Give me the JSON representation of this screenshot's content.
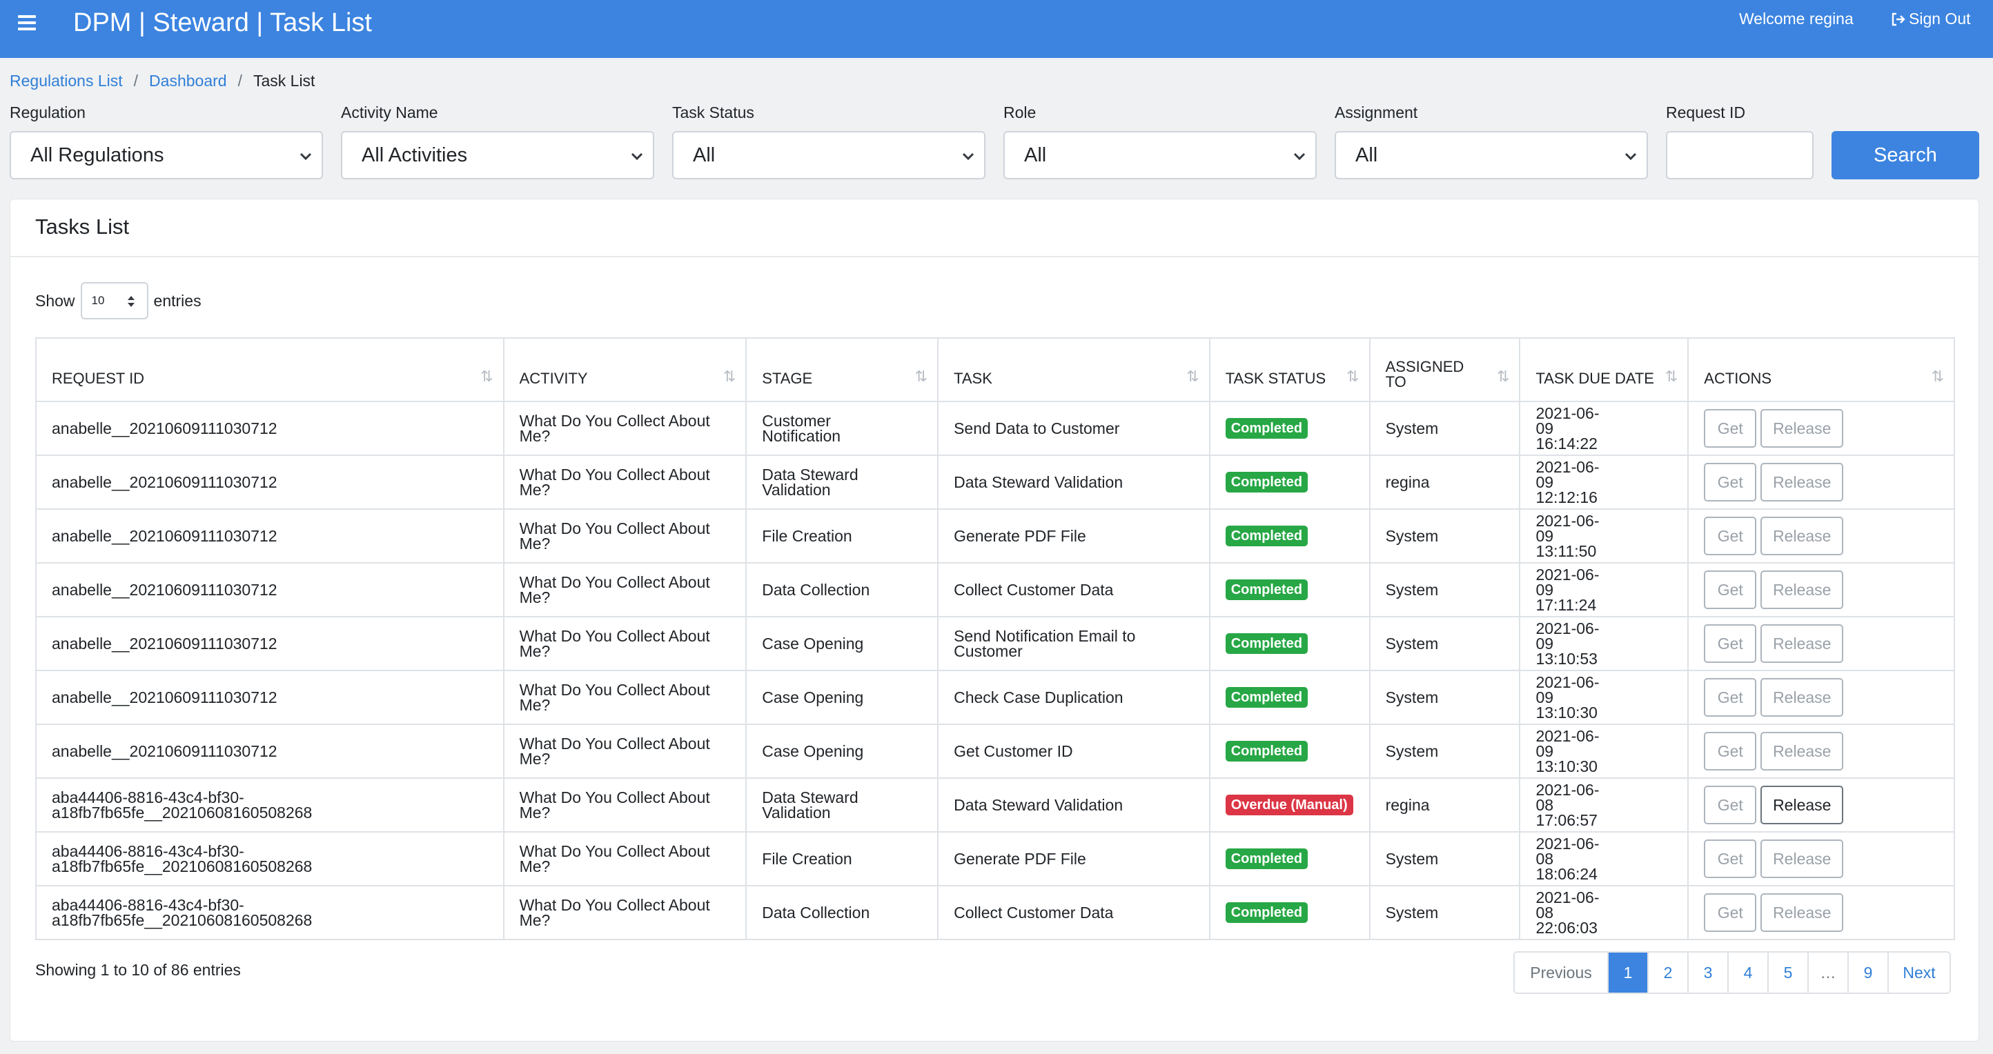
{
  "header": {
    "title": "DPM | Steward | Task List",
    "welcome": "Welcome regina",
    "sign_out": "Sign Out"
  },
  "breadcrumb": {
    "items": [
      "Regulations List",
      "Dashboard"
    ],
    "current": "Task List",
    "separator": "/"
  },
  "filters": {
    "regulation": {
      "label": "Regulation",
      "value": "All Regulations"
    },
    "activity": {
      "label": "Activity Name",
      "value": "All Activities"
    },
    "status": {
      "label": "Task Status",
      "value": "All"
    },
    "role": {
      "label": "Role",
      "value": "All"
    },
    "assignment": {
      "label": "Assignment",
      "value": "All"
    },
    "request_id": {
      "label": "Request ID",
      "value": ""
    },
    "search_label": "Search"
  },
  "card": {
    "title": "Tasks List",
    "show_label": "Show",
    "entries_value": "10",
    "entries_label": "entries"
  },
  "table": {
    "columns": [
      "REQUEST ID",
      "ACTIVITY",
      "STAGE",
      "TASK",
      "TASK STATUS",
      "ASSIGNED TO",
      "TASK DUE DATE",
      "ACTIONS"
    ],
    "rows": [
      {
        "request_id": "anabelle__20210609111030712",
        "activity": "What Do You Collect About Me?",
        "stage": "Customer Notification",
        "task": "Send Data to Customer",
        "status": "Completed",
        "status_type": "completed",
        "assigned": "System",
        "due": "2021-06-09 16:14:22",
        "release_active": false
      },
      {
        "request_id": "anabelle__20210609111030712",
        "activity": "What Do You Collect About Me?",
        "stage": "Data Steward Validation",
        "task": "Data Steward Validation",
        "status": "Completed",
        "status_type": "completed",
        "assigned": "regina",
        "due": "2021-06-09 12:12:16",
        "release_active": false
      },
      {
        "request_id": "anabelle__20210609111030712",
        "activity": "What Do You Collect About Me?",
        "stage": "File Creation",
        "task": "Generate PDF File",
        "status": "Completed",
        "status_type": "completed",
        "assigned": "System",
        "due": "2021-06-09 13:11:50",
        "release_active": false
      },
      {
        "request_id": "anabelle__20210609111030712",
        "activity": "What Do You Collect About Me?",
        "stage": "Data Collection",
        "task": "Collect Customer Data",
        "status": "Completed",
        "status_type": "completed",
        "assigned": "System",
        "due": "2021-06-09 17:11:24",
        "release_active": false
      },
      {
        "request_id": "anabelle__20210609111030712",
        "activity": "What Do You Collect About Me?",
        "stage": "Case Opening",
        "task": "Send Notification Email to Customer",
        "status": "Completed",
        "status_type": "completed",
        "assigned": "System",
        "due": "2021-06-09 13:10:53",
        "release_active": false
      },
      {
        "request_id": "anabelle__20210609111030712",
        "activity": "What Do You Collect About Me?",
        "stage": "Case Opening",
        "task": "Check Case Duplication",
        "status": "Completed",
        "status_type": "completed",
        "assigned": "System",
        "due": "2021-06-09 13:10:30",
        "release_active": false
      },
      {
        "request_id": "anabelle__20210609111030712",
        "activity": "What Do You Collect About Me?",
        "stage": "Case Opening",
        "task": "Get Customer ID",
        "status": "Completed",
        "status_type": "completed",
        "assigned": "System",
        "due": "2021-06-09 13:10:30",
        "release_active": false
      },
      {
        "request_id": "aba44406-8816-43c4-bf30-a18fb7fb65fe__20210608160508268",
        "activity": "What Do You Collect About Me?",
        "stage": "Data Steward Validation",
        "task": "Data Steward Validation",
        "status": "Overdue (Manual)",
        "status_type": "overdue",
        "assigned": "regina",
        "due": "2021-06-08 17:06:57",
        "release_active": true
      },
      {
        "request_id": "aba44406-8816-43c4-bf30-a18fb7fb65fe__20210608160508268",
        "activity": "What Do You Collect About Me?",
        "stage": "File Creation",
        "task": "Generate PDF File",
        "status": "Completed",
        "status_type": "completed",
        "assigned": "System",
        "due": "2021-06-08 18:06:24",
        "release_active": false
      },
      {
        "request_id": "aba44406-8816-43c4-bf30-a18fb7fb65fe__20210608160508268",
        "activity": "What Do You Collect About Me?",
        "stage": "Data Collection",
        "task": "Collect Customer Data",
        "status": "Completed",
        "status_type": "completed",
        "assigned": "System",
        "due": "2021-06-08 22:06:03",
        "release_active": false
      }
    ],
    "get_label": "Get",
    "release_label": "Release"
  },
  "footer": {
    "info": "Showing 1 to 10 of 86 entries"
  },
  "pagination": {
    "previous": "Previous",
    "pages": [
      "1",
      "2",
      "3",
      "4",
      "5",
      "…",
      "9"
    ],
    "active_page": "1",
    "next": "Next"
  },
  "colors": {
    "primary": "#3c84e0",
    "completed": "#27a745",
    "overdue": "#dc3545"
  }
}
